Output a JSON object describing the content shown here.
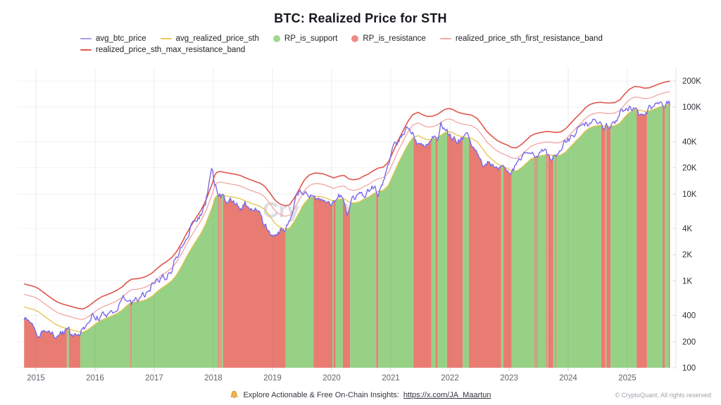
{
  "title": "BTC: Realized Price for STH",
  "legend": {
    "items": [
      {
        "label": "avg_btc_price",
        "swatch": "line",
        "color": "#a89ef0"
      },
      {
        "label": "avg_realized_price_sth",
        "swatch": "line",
        "color": "#ecca5a"
      },
      {
        "label": "RP_is_support",
        "swatch": "dot",
        "color": "#9fd692"
      },
      {
        "label": "RP_is_resistance",
        "swatch": "dot",
        "color": "#ee8c83"
      },
      {
        "label": "realized_price_sth_first_resistance_band",
        "swatch": "line",
        "color": "#f3a9a6"
      },
      {
        "label": "realized_price_sth_max_resistance_band",
        "swatch": "line",
        "color": "#e2574d"
      }
    ]
  },
  "watermark": "CryptoQuant",
  "footer": {
    "text": "Explore Actionable & Free On-Chain Insights:",
    "link": "https://x.com/JA_Maartun",
    "copyright": "© CryptoQuant. All rights reserved"
  },
  "chart_data": {
    "type": "area",
    "title": "BTC: Realized Price for STH",
    "y_scale": "log",
    "ylim": [
      100,
      280000
    ],
    "y_ticks": [
      {
        "label": "100",
        "value": 100
      },
      {
        "label": "200",
        "value": 200
      },
      {
        "label": "400",
        "value": 400
      },
      {
        "label": "1K",
        "value": 1000
      },
      {
        "label": "2K",
        "value": 2000
      },
      {
        "label": "4K",
        "value": 4000
      },
      {
        "label": "10K",
        "value": 10000
      },
      {
        "label": "20K",
        "value": 20000
      },
      {
        "label": "40K",
        "value": 40000
      },
      {
        "label": "100K",
        "value": 100000
      },
      {
        "label": "200K",
        "value": 200000
      }
    ],
    "x_ticks": [
      2015,
      2016,
      2017,
      2018,
      2019,
      2020,
      2021,
      2022,
      2023,
      2024,
      2025
    ],
    "x_range": [
      2014.8,
      2025.72
    ],
    "legend_position": "top",
    "grid": "horizontal-major",
    "series_names": [
      "avg_btc_price",
      "avg_realized_price_sth",
      "RP_is_support",
      "RP_is_resistance",
      "realized_price_sth_first_resistance_band",
      "realized_price_sth_max_resistance_band"
    ],
    "band_multipliers": {
      "first_resistance": 1.4,
      "max_resistance": 1.85
    },
    "fill_rule": "area from 100 up to min(avg_btc_price, avg_realized_price_sth); green where price >= realized (support), red where price < realized (resistance)",
    "colors": {
      "support_fill": "#96d186",
      "resistance_fill": "#e97c72",
      "btc_line": "#7a6ae6",
      "realized_line": "#e4c24d",
      "first_band_line": "#f2a6a3",
      "max_band_line": "#e0554b",
      "grid": "#f3f3f6",
      "axis": "#e2e2e8",
      "tick": "#d9d9e0",
      "y_label": "#2e2e36",
      "x_label": "#63636e"
    },
    "points_format": [
      "year_decimal",
      "avg_btc_price_usd",
      "avg_realized_price_sth_usd"
    ],
    "points": [
      [
        2014.8,
        370,
        500
      ],
      [
        2014.88,
        352,
        482
      ],
      [
        2014.96,
        322,
        468
      ],
      [
        2015.04,
        228,
        442
      ],
      [
        2015.12,
        242,
        402
      ],
      [
        2015.21,
        256,
        362
      ],
      [
        2015.29,
        240,
        331
      ],
      [
        2015.37,
        238,
        306
      ],
      [
        2015.46,
        252,
        291
      ],
      [
        2015.54,
        283,
        281
      ],
      [
        2015.62,
        233,
        271
      ],
      [
        2015.71,
        238,
        261
      ],
      [
        2015.79,
        268,
        256
      ],
      [
        2015.87,
        332,
        271
      ],
      [
        2015.96,
        422,
        301
      ],
      [
        2016.04,
        382,
        331
      ],
      [
        2016.12,
        400,
        356
      ],
      [
        2016.21,
        416,
        376
      ],
      [
        2016.29,
        446,
        396
      ],
      [
        2016.37,
        482,
        421
      ],
      [
        2016.46,
        612,
        461
      ],
      [
        2016.54,
        656,
        521
      ],
      [
        2016.62,
        556,
        566
      ],
      [
        2016.71,
        606,
        571
      ],
      [
        2016.79,
        641,
        586
      ],
      [
        2016.87,
        731,
        611
      ],
      [
        2016.96,
        902,
        661
      ],
      [
        2017.04,
        992,
        741
      ],
      [
        2017.12,
        1130,
        821
      ],
      [
        2017.21,
        1150,
        901
      ],
      [
        2017.29,
        1302,
        991
      ],
      [
        2017.37,
        1902,
        1151
      ],
      [
        2017.46,
        2502,
        1451
      ],
      [
        2017.54,
        2702,
        1851
      ],
      [
        2017.62,
        4202,
        2301
      ],
      [
        2017.71,
        4502,
        2901
      ],
      [
        2017.79,
        5802,
        3501
      ],
      [
        2017.87,
        8202,
        4501
      ],
      [
        2017.96,
        16500,
        6500
      ],
      [
        2017.98,
        19500,
        7000
      ],
      [
        2018.02,
        14000,
        8800
      ],
      [
        2018.06,
        11200,
        9600
      ],
      [
        2018.12,
        9600,
        9800
      ],
      [
        2018.21,
        8600,
        9500
      ],
      [
        2018.29,
        9300,
        9300
      ],
      [
        2018.37,
        7700,
        9100
      ],
      [
        2018.46,
        6600,
        8800
      ],
      [
        2018.54,
        7700,
        8300
      ],
      [
        2018.62,
        7000,
        7900
      ],
      [
        2018.71,
        6600,
        7500
      ],
      [
        2018.79,
        6400,
        7200
      ],
      [
        2018.87,
        4400,
        6600
      ],
      [
        2018.96,
        3750,
        5500
      ],
      [
        2019.04,
        3580,
        4600
      ],
      [
        2019.12,
        3850,
        4150
      ],
      [
        2019.21,
        4050,
        3950
      ],
      [
        2019.29,
        5250,
        4050
      ],
      [
        2019.37,
        8050,
        4850
      ],
      [
        2019.46,
        11000,
        6250
      ],
      [
        2019.54,
        10300,
        7850
      ],
      [
        2019.62,
        10050,
        8900
      ],
      [
        2019.71,
        9850,
        9400
      ],
      [
        2019.79,
        8650,
        9350
      ],
      [
        2019.87,
        8950,
        9150
      ],
      [
        2019.96,
        7350,
        8650
      ],
      [
        2020.04,
        8600,
        8250
      ],
      [
        2020.12,
        9850,
        8650
      ],
      [
        2020.21,
        8850,
        8850
      ],
      [
        2020.25,
        5300,
        8450
      ],
      [
        2020.29,
        6850,
        8050
      ],
      [
        2020.37,
        8950,
        7850
      ],
      [
        2020.46,
        9550,
        8050
      ],
      [
        2020.54,
        9250,
        8650
      ],
      [
        2020.62,
        11250,
        9150
      ],
      [
        2020.71,
        11650,
        10050
      ],
      [
        2020.79,
        10550,
        10750
      ],
      [
        2020.87,
        13550,
        10950
      ],
      [
        2020.96,
        22000,
        12550
      ],
      [
        2021.04,
        32000,
        16550
      ],
      [
        2021.12,
        40000,
        22000
      ],
      [
        2021.21,
        52000,
        29000
      ],
      [
        2021.29,
        58000,
        37000
      ],
      [
        2021.37,
        55000,
        44000
      ],
      [
        2021.46,
        37000,
        47000
      ],
      [
        2021.54,
        34000,
        44000
      ],
      [
        2021.62,
        40000,
        42000
      ],
      [
        2021.71,
        47000,
        42500
      ],
      [
        2021.79,
        45000,
        44500
      ],
      [
        2021.85,
        66000,
        47500
      ],
      [
        2021.92,
        55000,
        51000
      ],
      [
        2021.98,
        48000,
        52000
      ],
      [
        2022.04,
        43000,
        51000
      ],
      [
        2022.12,
        40000,
        47500
      ],
      [
        2022.21,
        42000,
        45500
      ],
      [
        2022.29,
        45500,
        44500
      ],
      [
        2022.37,
        39000,
        43500
      ],
      [
        2022.46,
        30000,
        40000
      ],
      [
        2022.54,
        21000,
        34000
      ],
      [
        2022.62,
        23000,
        28500
      ],
      [
        2022.71,
        21500,
        25000
      ],
      [
        2022.79,
        19500,
        22500
      ],
      [
        2022.87,
        20000,
        21000
      ],
      [
        2022.96,
        16800,
        19850
      ],
      [
        2023.04,
        17500,
        18550
      ],
      [
        2023.12,
        22500,
        18250
      ],
      [
        2023.21,
        24000,
        20000
      ],
      [
        2023.29,
        28500,
        22500
      ],
      [
        2023.37,
        29000,
        25250
      ],
      [
        2023.46,
        27000,
        26850
      ],
      [
        2023.54,
        30500,
        27550
      ],
      [
        2023.62,
        29500,
        28250
      ],
      [
        2023.71,
        26500,
        28050
      ],
      [
        2023.79,
        26800,
        27550
      ],
      [
        2023.87,
        33000,
        27850
      ],
      [
        2023.96,
        40000,
        30550
      ],
      [
        2024.04,
        43000,
        35000
      ],
      [
        2024.12,
        50000,
        40000
      ],
      [
        2024.21,
        68000,
        46000
      ],
      [
        2024.29,
        66000,
        53000
      ],
      [
        2024.37,
        62000,
        58000
      ],
      [
        2024.46,
        68000,
        60500
      ],
      [
        2024.54,
        61000,
        61500
      ],
      [
        2024.62,
        59000,
        60500
      ],
      [
        2024.71,
        62500,
        60000
      ],
      [
        2024.79,
        66500,
        61000
      ],
      [
        2024.87,
        88000,
        65000
      ],
      [
        2024.96,
        97000,
        77000
      ],
      [
        2025.04,
        100000,
        87000
      ],
      [
        2025.12,
        96000,
        93000
      ],
      [
        2025.21,
        84000,
        92000
      ],
      [
        2025.29,
        85500,
        89000
      ],
      [
        2025.37,
        97000,
        90000
      ],
      [
        2025.46,
        104000,
        95000
      ],
      [
        2025.54,
        116000,
        100000
      ],
      [
        2025.62,
        110000,
        104000
      ],
      [
        2025.71,
        114000,
        107000
      ],
      [
        2025.72,
        112000,
        107500
      ]
    ]
  }
}
